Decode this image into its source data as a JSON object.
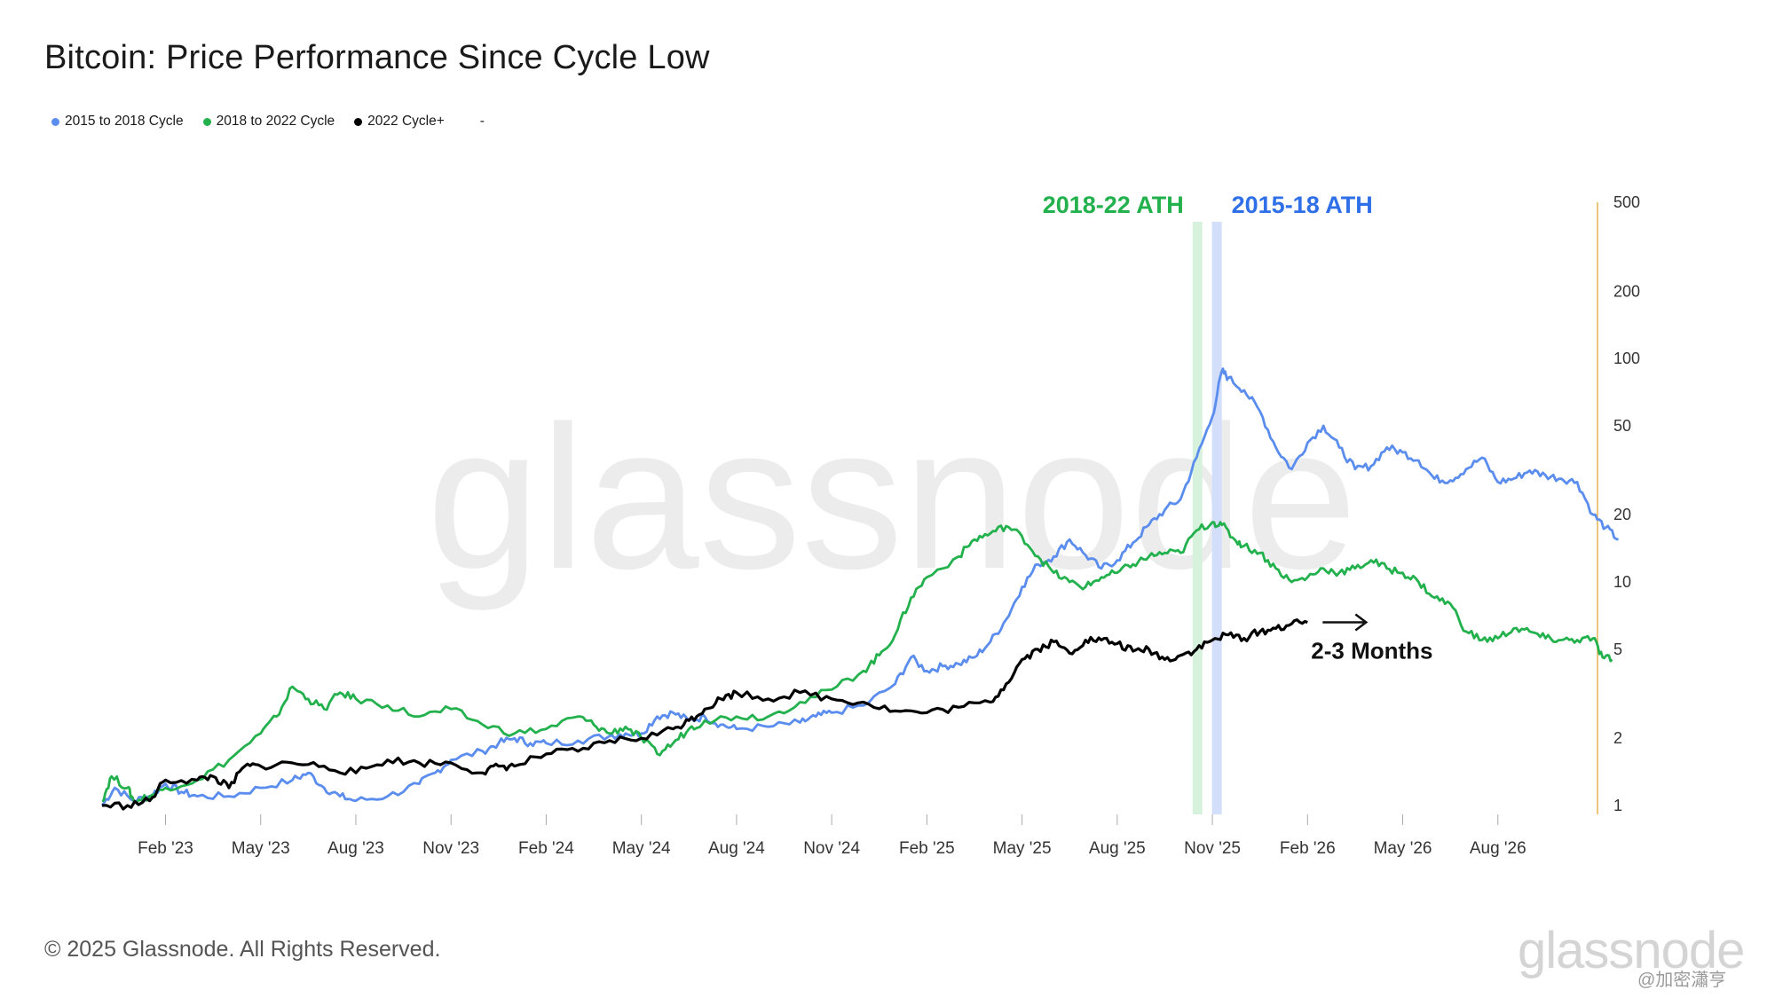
{
  "title": "Bitcoin: Price Performance Since Cycle Low",
  "legend": [
    {
      "label": "2015 to 2018 Cycle",
      "color": "#5b8def"
    },
    {
      "label": "2018 to 2022 Cycle",
      "color": "#22b14c"
    },
    {
      "label": "2022 Cycle+",
      "color": "#000000"
    },
    {
      "label": "-",
      "color": ""
    }
  ],
  "footer": "© 2025 Glassnode. All Rights Reserved.",
  "logo_text": "glassnode",
  "watermark_text": "glassnode",
  "weibo_mark": "@加密瀟亨",
  "colors": {
    "blue": "#5b8def",
    "green": "#22b14c",
    "black": "#000000",
    "axis": "#e8b34d",
    "ath_green_band": "#d7f2dc",
    "ath_blue_band": "#d3defb"
  },
  "chart_data": {
    "type": "line",
    "title": "Bitcoin: Price Performance Since Cycle Low",
    "x_ticks": [
      "Feb '23",
      "May '23",
      "Aug '23",
      "Nov '23",
      "Feb '24",
      "May '24",
      "Aug '24",
      "Nov '24",
      "Feb '25",
      "May '25",
      "Aug '25",
      "Nov '25",
      "Feb '26",
      "May '26",
      "Aug '26"
    ],
    "x_unit": "months since Dec 2022",
    "y_scale": "log",
    "y_ticks": [
      1,
      2,
      5,
      10,
      20,
      50,
      100,
      200,
      500
    ],
    "ylim": [
      1,
      500
    ],
    "xlim": [
      0,
      47
    ],
    "annotations": [
      {
        "text": "2018-22 ATH",
        "color": "#22b14c",
        "x": 34.6
      },
      {
        "text": "2015-18 ATH",
        "color": "#2f6fe8",
        "x": 35.1
      },
      {
        "text": "2-3 Months",
        "color": "#111111",
        "arrow": true
      }
    ],
    "series": [
      {
        "name": "2015 to 2018 Cycle",
        "color": "#5b8def",
        "points": [
          [
            0,
            1.0
          ],
          [
            0.4,
            1.2
          ],
          [
            1,
            1.05
          ],
          [
            1.5,
            1.1
          ],
          [
            2,
            1.25
          ],
          [
            2.5,
            1.15
          ],
          [
            3,
            1.1
          ],
          [
            4,
            1.1
          ],
          [
            5,
            1.2
          ],
          [
            6,
            1.3
          ],
          [
            6.5,
            1.4
          ],
          [
            7,
            1.2
          ],
          [
            7.5,
            1.1
          ],
          [
            8,
            1.05
          ],
          [
            9,
            1.1
          ],
          [
            10,
            1.25
          ],
          [
            10.5,
            1.4
          ],
          [
            11,
            1.6
          ],
          [
            12,
            1.75
          ],
          [
            12.5,
            1.9
          ],
          [
            13,
            2.0
          ],
          [
            13.5,
            1.9
          ],
          [
            14,
            1.9
          ],
          [
            15,
            1.95
          ],
          [
            16,
            2.05
          ],
          [
            16.5,
            2.1
          ],
          [
            17,
            2.1
          ],
          [
            17.5,
            2.5
          ],
          [
            18,
            2.6
          ],
          [
            18.5,
            2.4
          ],
          [
            19,
            2.5
          ],
          [
            19.5,
            2.3
          ],
          [
            20,
            2.2
          ],
          [
            21,
            2.25
          ],
          [
            22,
            2.35
          ],
          [
            22.5,
            2.5
          ],
          [
            23,
            2.6
          ],
          [
            24,
            2.8
          ],
          [
            25,
            3.5
          ],
          [
            25.5,
            4.6
          ],
          [
            26,
            4.0
          ],
          [
            26.5,
            4.2
          ],
          [
            27,
            4.3
          ],
          [
            27.5,
            4.6
          ],
          [
            28,
            5.4
          ],
          [
            28.5,
            6.8
          ],
          [
            29,
            9.5
          ],
          [
            29.5,
            12.0
          ],
          [
            30,
            13.0
          ],
          [
            30.5,
            15.5
          ],
          [
            31,
            13.2
          ],
          [
            31.5,
            11.5
          ],
          [
            32,
            12.5
          ],
          [
            32.5,
            15.0
          ],
          [
            33,
            18.0
          ],
          [
            33.5,
            21.0
          ],
          [
            34,
            23.5
          ],
          [
            34.5,
            36.0
          ],
          [
            35,
            55.0
          ],
          [
            35.3,
            88.0
          ],
          [
            35.5,
            82.0
          ],
          [
            36,
            72.0
          ],
          [
            36.5,
            58.0
          ],
          [
            37,
            40.0
          ],
          [
            37.5,
            32.0
          ],
          [
            38,
            42.0
          ],
          [
            38.5,
            50.0
          ],
          [
            39,
            40.0
          ],
          [
            39.5,
            32.0
          ],
          [
            40,
            33.0
          ],
          [
            40.5,
            40.0
          ],
          [
            41,
            38.0
          ],
          [
            41.5,
            35.0
          ],
          [
            42,
            29.0
          ],
          [
            42.5,
            28.5
          ],
          [
            43,
            32.0
          ],
          [
            43.5,
            36.0
          ],
          [
            44,
            28.0
          ],
          [
            44.5,
            29.0
          ],
          [
            45,
            31.5
          ],
          [
            45.5,
            30.0
          ],
          [
            46,
            29.0
          ],
          [
            46.5,
            28.0
          ],
          [
            47,
            20.0
          ],
          [
            47.4,
            17.5
          ],
          [
            47.8,
            15.5
          ]
        ]
      },
      {
        "name": "2018 to 2022 Cycle",
        "color": "#22b14c",
        "points": [
          [
            0,
            1.05
          ],
          [
            0.3,
            1.35
          ],
          [
            0.8,
            1.2
          ],
          [
            1,
            1.05
          ],
          [
            1.5,
            1.1
          ],
          [
            2,
            1.2
          ],
          [
            3,
            1.3
          ],
          [
            4,
            1.6
          ],
          [
            5,
            2.1
          ],
          [
            5.5,
            2.5
          ],
          [
            6,
            3.4
          ],
          [
            6.5,
            3.0
          ],
          [
            7,
            2.7
          ],
          [
            7.5,
            3.2
          ],
          [
            8,
            3.0
          ],
          [
            9,
            2.8
          ],
          [
            10,
            2.5
          ],
          [
            11,
            2.7
          ],
          [
            12,
            2.3
          ],
          [
            13,
            2.1
          ],
          [
            14,
            2.2
          ],
          [
            15,
            2.5
          ],
          [
            15.5,
            2.3
          ],
          [
            16,
            2.1
          ],
          [
            16.5,
            2.25
          ],
          [
            17,
            2.0
          ],
          [
            17.5,
            1.7
          ],
          [
            18,
            1.9
          ],
          [
            18.5,
            2.2
          ],
          [
            19,
            2.4
          ],
          [
            20,
            2.5
          ],
          [
            21,
            2.5
          ],
          [
            22,
            2.9
          ],
          [
            23,
            3.3
          ],
          [
            24,
            4.0
          ],
          [
            24.5,
            4.7
          ],
          [
            25,
            5.8
          ],
          [
            25.5,
            8.5
          ],
          [
            26,
            10.5
          ],
          [
            27,
            13.0
          ],
          [
            27.5,
            15.5
          ],
          [
            28,
            16.5
          ],
          [
            28.5,
            17.8
          ],
          [
            29,
            16.0
          ],
          [
            29.5,
            13.0
          ],
          [
            30,
            11.0
          ],
          [
            30.5,
            10.0
          ],
          [
            31,
            9.5
          ],
          [
            31.5,
            10.5
          ],
          [
            32,
            11.0
          ],
          [
            32.5,
            12.0
          ],
          [
            33,
            13.0
          ],
          [
            33.5,
            13.5
          ],
          [
            34,
            13.5
          ],
          [
            34.5,
            17.0
          ],
          [
            35,
            18.5
          ],
          [
            35.3,
            18.0
          ],
          [
            35.7,
            15.5
          ],
          [
            36,
            14.5
          ],
          [
            36.5,
            13.5
          ],
          [
            37,
            11.5
          ],
          [
            37.5,
            10.0
          ],
          [
            38,
            10.5
          ],
          [
            38.5,
            11.5
          ],
          [
            39,
            11.0
          ],
          [
            39.5,
            11.5
          ],
          [
            40,
            12.5
          ],
          [
            40.5,
            11.5
          ],
          [
            41,
            11.0
          ],
          [
            41.5,
            10.0
          ],
          [
            42,
            8.5
          ],
          [
            42.5,
            8.0
          ],
          [
            43,
            6.0
          ],
          [
            43.5,
            5.5
          ],
          [
            44,
            5.6
          ],
          [
            44.5,
            6.2
          ],
          [
            45,
            6.0
          ],
          [
            45.5,
            5.6
          ],
          [
            46,
            5.5
          ],
          [
            46.5,
            5.5
          ],
          [
            47,
            5.6
          ],
          [
            47.3,
            4.6
          ],
          [
            47.6,
            4.5
          ]
        ]
      },
      {
        "name": "2022 Cycle+",
        "color": "#000000",
        "points": [
          [
            0,
            1.0
          ],
          [
            0.8,
            1.0
          ],
          [
            1.5,
            1.05
          ],
          [
            2,
            1.3
          ],
          [
            3,
            1.3
          ],
          [
            3.5,
            1.35
          ],
          [
            4,
            1.2
          ],
          [
            4.5,
            1.5
          ],
          [
            5,
            1.5
          ],
          [
            6,
            1.55
          ],
          [
            7,
            1.5
          ],
          [
            8,
            1.4
          ],
          [
            9,
            1.6
          ],
          [
            10,
            1.55
          ],
          [
            11,
            1.55
          ],
          [
            12,
            1.4
          ],
          [
            12.5,
            1.5
          ],
          [
            13,
            1.5
          ],
          [
            14,
            1.7
          ],
          [
            15,
            1.75
          ],
          [
            16,
            1.95
          ],
          [
            17,
            2.0
          ],
          [
            18,
            2.2
          ],
          [
            18.5,
            2.4
          ],
          [
            19,
            2.7
          ],
          [
            19.5,
            3.0
          ],
          [
            20,
            3.2
          ],
          [
            21,
            3.0
          ],
          [
            22,
            3.2
          ],
          [
            23,
            3.0
          ],
          [
            24,
            2.9
          ],
          [
            25,
            2.65
          ],
          [
            26,
            2.6
          ],
          [
            27,
            2.75
          ],
          [
            28,
            2.9
          ],
          [
            28.5,
            3.5
          ],
          [
            29,
            4.5
          ],
          [
            29.5,
            5.0
          ],
          [
            30,
            5.4
          ],
          [
            30.5,
            4.8
          ],
          [
            31,
            5.5
          ],
          [
            31.5,
            5.5
          ],
          [
            32,
            5.3
          ],
          [
            32.5,
            4.9
          ],
          [
            33,
            5.0
          ],
          [
            33.5,
            4.5
          ],
          [
            34,
            4.7
          ],
          [
            34.5,
            5.0
          ],
          [
            35,
            5.5
          ],
          [
            35.5,
            5.8
          ],
          [
            36,
            5.6
          ],
          [
            36.5,
            6.0
          ],
          [
            37,
            6.2
          ],
          [
            37.5,
            6.5
          ],
          [
            38,
            6.6
          ]
        ]
      }
    ]
  }
}
